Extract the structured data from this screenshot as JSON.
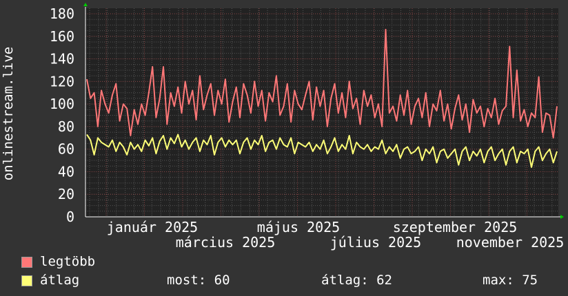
{
  "chart_data": {
    "type": "line",
    "ylabel": "onlinestream.live",
    "ylim": [
      0,
      180
    ],
    "yticks": [
      "0",
      "20",
      "40",
      "60",
      "80",
      "100",
      "120",
      "140",
      "160",
      "180"
    ],
    "xticks": [
      "január 2025",
      "március 2025",
      "május 2025",
      "július 2025",
      "szeptember 2025",
      "november 2025"
    ],
    "grid": true,
    "series": [
      {
        "name": "legtöbb",
        "color": "#ff7777",
        "values": [
          122,
          105,
          110,
          80,
          112,
          100,
          92,
          108,
          118,
          85,
          100,
          96,
          72,
          95,
          82,
          100,
          90,
          110,
          133,
          88,
          105,
          133,
          82,
          110,
          98,
          115,
          92,
          120,
          100,
          112,
          86,
          125,
          95,
          108,
          118,
          90,
          112,
          100,
          122,
          84,
          102,
          115,
          88,
          118,
          108,
          92,
          120,
          98,
          112,
          85,
          110,
          102,
          125,
          90,
          98,
          118,
          84,
          112,
          100,
          95,
          108,
          120,
          86,
          115,
          98,
          112,
          80,
          105,
          118,
          92,
          110,
          88,
          120,
          96,
          105,
          82,
          112,
          98,
          108,
          88,
          100,
          80,
          166,
          92,
          98,
          85,
          108,
          90,
          112,
          82,
          98,
          105,
          88,
          110,
          80,
          100,
          94,
          112,
          85,
          100,
          78,
          96,
          108,
          86,
          100,
          75,
          104,
          92,
          98,
          80,
          96,
          88,
          105,
          82,
          94,
          98,
          151,
          88,
          130,
          85,
          95,
          80,
          92,
          88,
          124,
          75,
          92,
          90,
          70,
          98
        ]
      },
      {
        "name": "átlag",
        "color": "#ffff77",
        "values": [
          73,
          68,
          55,
          70,
          66,
          64,
          62,
          68,
          58,
          66,
          62,
          55,
          66,
          60,
          64,
          58,
          68,
          63,
          70,
          56,
          67,
          72,
          60,
          70,
          65,
          73,
          62,
          68,
          60,
          66,
          70,
          58,
          68,
          64,
          72,
          55,
          66,
          70,
          62,
          68,
          64,
          68,
          56,
          66,
          70,
          60,
          68,
          64,
          72,
          58,
          66,
          68,
          60,
          70,
          64,
          62,
          70,
          56,
          66,
          64,
          62,
          66,
          58,
          64,
          60,
          68,
          56,
          62,
          70,
          58,
          64,
          60,
          72,
          56,
          66,
          62,
          60,
          64,
          58,
          62,
          60,
          68,
          56,
          62,
          58,
          64,
          52,
          60,
          62,
          56,
          58,
          62,
          50,
          60,
          56,
          62,
          48,
          58,
          60,
          52,
          56,
          60,
          46,
          58,
          62,
          50,
          58,
          54,
          60,
          48,
          58,
          62,
          50,
          56,
          60,
          46,
          58,
          62,
          48,
          58,
          56,
          60,
          44,
          58,
          62,
          50,
          56,
          60,
          48,
          58
        ]
      }
    ]
  },
  "legend": {
    "max_label": "legtöbb",
    "avg_label": "átlag",
    "now": "most: 60",
    "avg": "átlag: 62",
    "max": "max: 75"
  }
}
